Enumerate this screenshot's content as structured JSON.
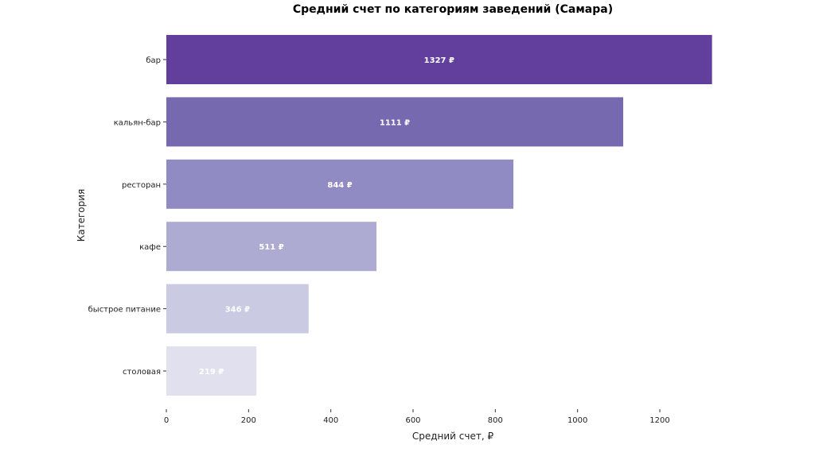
{
  "chart_data": {
    "type": "bar",
    "orientation": "horizontal",
    "title": "Средний счет по категориям заведений (Самара)",
    "xlabel": "Средний счет, ₽",
    "ylabel": "Категория",
    "categories": [
      "бар",
      "кальян-бар",
      "ресторан",
      "кафе",
      "быстрое питание",
      "столовая"
    ],
    "values": [
      1327,
      1111,
      844,
      511,
      346,
      219
    ],
    "data_labels": [
      "1327 ₽",
      "1111 ₽",
      "844 ₽",
      "511 ₽",
      "346 ₽",
      "219 ₽"
    ],
    "colors": [
      "#623f9c",
      "#7769af",
      "#908bc2",
      "#aeabd3",
      "#cbcae3",
      "#e1e0ee"
    ],
    "xlim": [
      0,
      1327
    ],
    "xticks": [
      0,
      200,
      400,
      600,
      800,
      1000,
      1200
    ],
    "grid": false,
    "legend": "none"
  }
}
